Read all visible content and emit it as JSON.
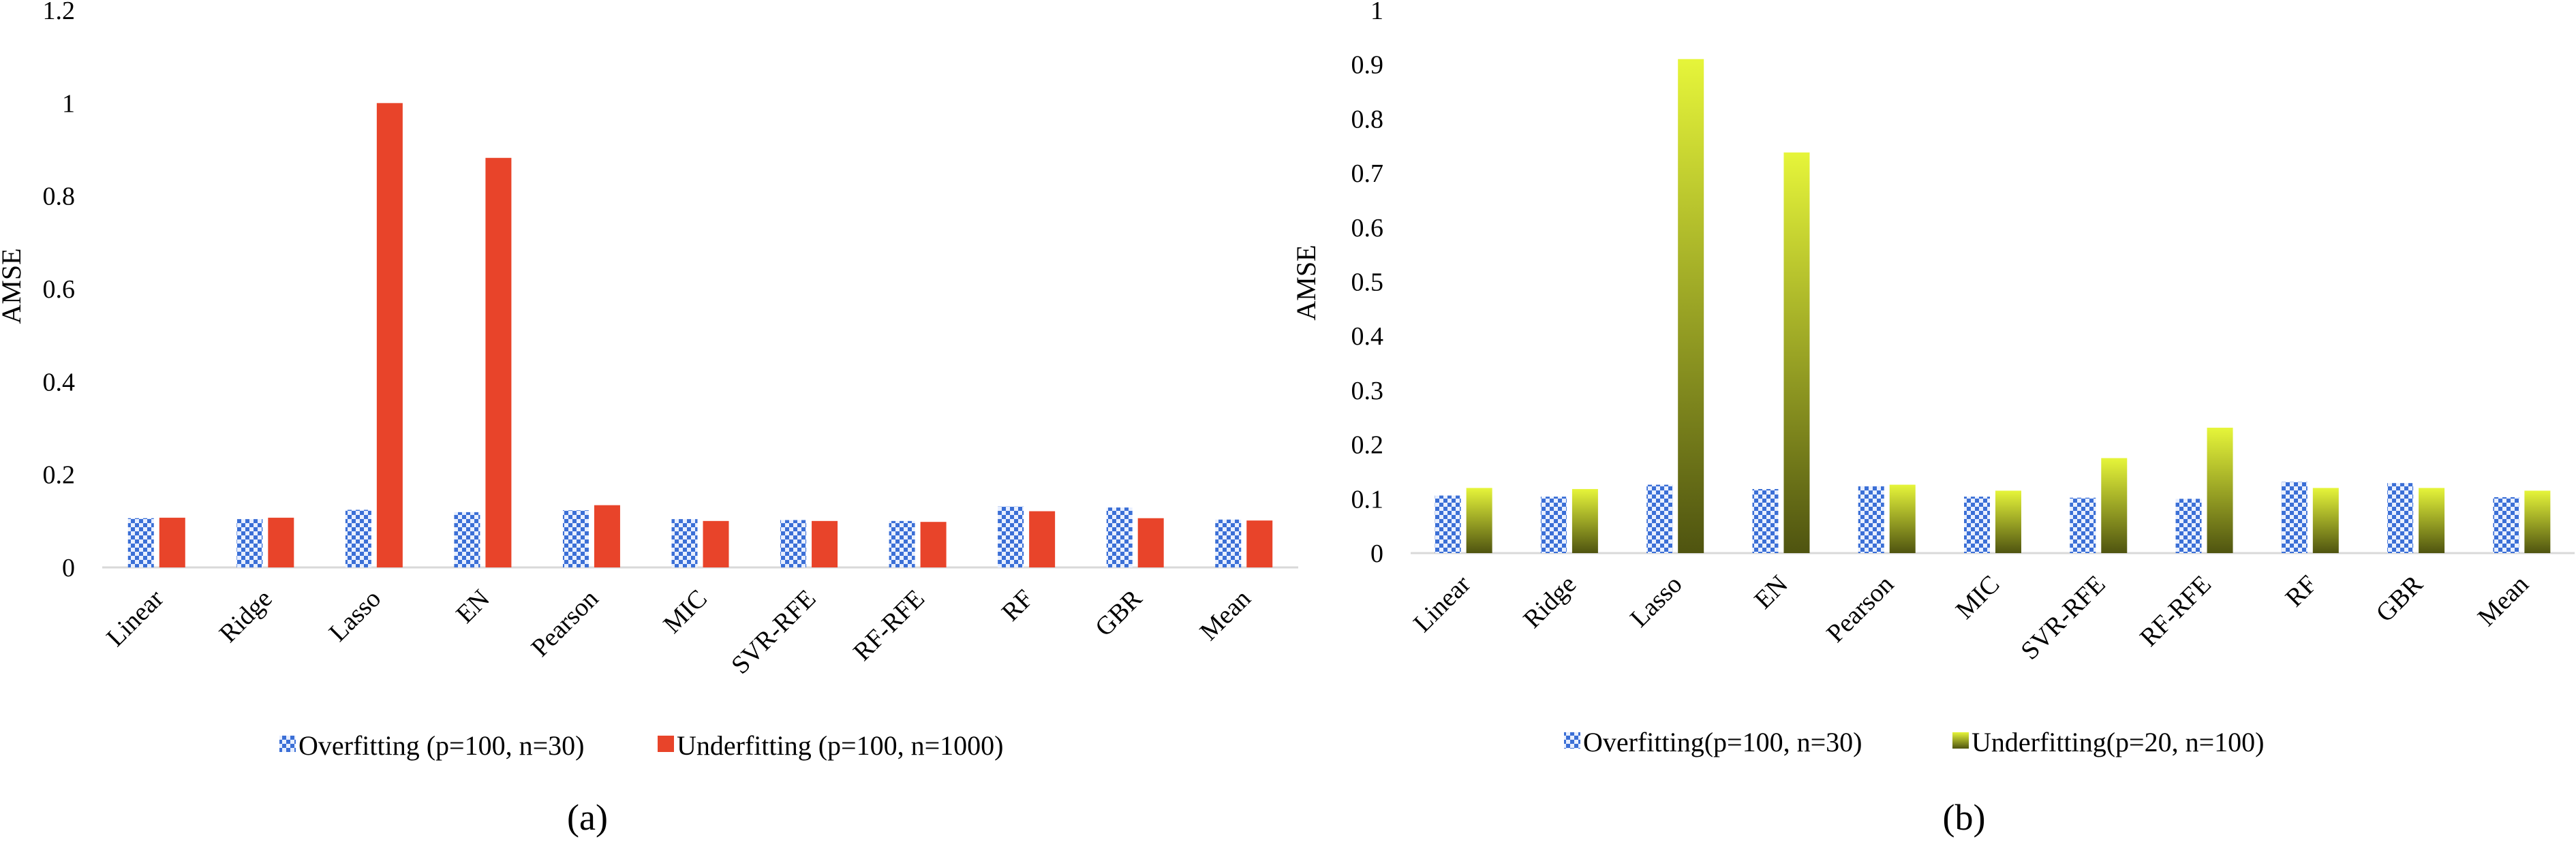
{
  "chart_data": [
    {
      "type": "bar",
      "panel_label": "(a)",
      "ylabel": "AMSE",
      "xlabel": "",
      "ylim": [
        0,
        1.2
      ],
      "yticks": [
        "0",
        "0.2",
        "0.4",
        "0.6",
        "0.8",
        "1",
        "1.2"
      ],
      "grid": false,
      "legend_position": "bottom",
      "categories": [
        "Linear",
        "Ridge",
        "Lasso",
        "EN",
        "Pearson",
        "MIC",
        "SVR-RFE",
        "RF-RFE",
        "RF",
        "GBR",
        "Mean"
      ],
      "series": [
        {
          "name": "Overfitting (p=100, n=30)",
          "color": "#3b6fd6",
          "pattern": "checker",
          "values": [
            0.106,
            0.104,
            0.124,
            0.119,
            0.123,
            0.104,
            0.102,
            0.1,
            0.131,
            0.129,
            0.103
          ]
        },
        {
          "name": "Underfitting (p=100, n=1000)",
          "color": "#e8442a",
          "pattern": "solid",
          "values": [
            0.107,
            0.107,
            1.0,
            0.882,
            0.134,
            0.1,
            0.1,
            0.098,
            0.121,
            0.106,
            0.101
          ]
        }
      ]
    },
    {
      "type": "bar",
      "panel_label": "(b)",
      "ylabel": "AMSE",
      "xlabel": "",
      "ylim": [
        0,
        1
      ],
      "yticks": [
        "0",
        "0.1",
        "0.2",
        "0.3",
        "0.4",
        "0.5",
        "0.6",
        "0.7",
        "0.8",
        "0.9",
        "1"
      ],
      "grid": false,
      "legend_position": "bottom",
      "categories": [
        "Linear",
        "Ridge",
        "Lasso",
        "EN",
        "Pearson",
        "MIC",
        "SVR-RFE",
        "RF-RFE",
        "RF",
        "GBR",
        "Mean"
      ],
      "series": [
        {
          "name": "Overfitting(p=100, n=30)",
          "color": "#3b6fd6",
          "pattern": "checker",
          "values": [
            0.106,
            0.104,
            0.126,
            0.118,
            0.123,
            0.104,
            0.102,
            0.1,
            0.131,
            0.129,
            0.103
          ]
        },
        {
          "name": "Underfitting(p=20, n=100)",
          "color": "#e6f53a",
          "color_dark": "#4f5410",
          "pattern": "gradient",
          "values": [
            0.12,
            0.118,
            0.91,
            0.738,
            0.126,
            0.115,
            0.175,
            0.231,
            0.12,
            0.12,
            0.115
          ]
        }
      ]
    }
  ]
}
